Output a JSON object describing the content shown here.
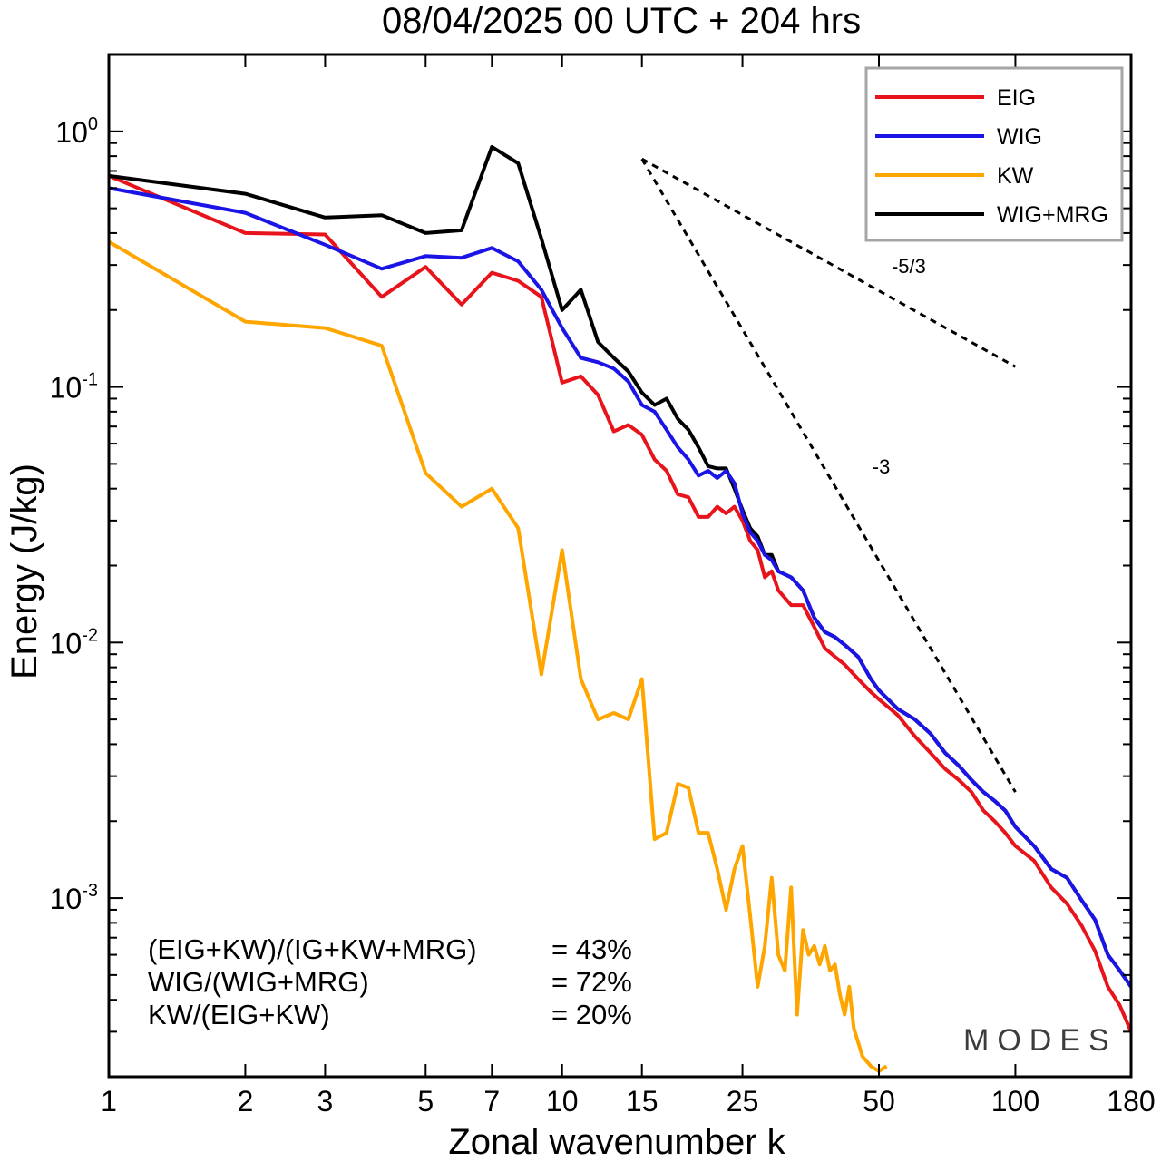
{
  "chart_data": {
    "type": "line",
    "title": "08/04/2025  00 UTC  + 204 hrs",
    "xlabel": "Zonal wavenumber k",
    "ylabel": "Energy (J/kg)",
    "x_scale": "log",
    "y_scale": "log",
    "xlim": [
      1,
      180
    ],
    "ylim": [
      0.0002,
      2.0
    ],
    "x_ticks": [
      1,
      2,
      3,
      5,
      7,
      10,
      15,
      25,
      50,
      100,
      180
    ],
    "x_tick_labels": [
      "1",
      "2",
      "3",
      "5",
      "7",
      "10",
      "15",
      "25",
      "50",
      "100",
      "180"
    ],
    "y_ticks": [
      {
        "base": "10",
        "exp": "-3",
        "value": 0.001
      },
      {
        "base": "10",
        "exp": "-2",
        "value": 0.01
      },
      {
        "base": "10",
        "exp": "-1",
        "value": 0.1
      },
      {
        "base": "10",
        "exp": "0",
        "value": 1
      }
    ],
    "legend_position": "top-right",
    "series": [
      {
        "name": "EIG",
        "color": "#e8141c",
        "x": [
          1,
          2,
          3,
          4,
          5,
          6,
          7,
          8,
          9,
          10,
          11,
          12,
          13,
          14,
          15,
          16,
          17,
          18,
          19,
          20,
          21,
          22,
          23,
          24,
          25,
          26,
          27,
          28,
          29,
          30,
          32,
          34,
          36,
          38,
          40,
          42,
          45,
          48,
          50,
          55,
          60,
          65,
          70,
          75,
          80,
          85,
          90,
          95,
          100,
          110,
          120,
          130,
          140,
          150,
          160,
          170,
          180
        ],
        "y": [
          0.67,
          0.4,
          0.395,
          0.225,
          0.295,
          0.21,
          0.28,
          0.26,
          0.225,
          0.104,
          0.11,
          0.093,
          0.067,
          0.071,
          0.065,
          0.052,
          0.047,
          0.038,
          0.037,
          0.031,
          0.031,
          0.034,
          0.032,
          0.034,
          0.03,
          0.025,
          0.023,
          0.018,
          0.019,
          0.016,
          0.014,
          0.014,
          0.0115,
          0.0095,
          0.0088,
          0.0082,
          0.0072,
          0.0064,
          0.006,
          0.0052,
          0.0043,
          0.0037,
          0.0032,
          0.0029,
          0.0026,
          0.0022,
          0.002,
          0.0018,
          0.0016,
          0.0014,
          0.0011,
          0.00095,
          0.00078,
          0.00062,
          0.00045,
          0.00038,
          0.0003
        ]
      },
      {
        "name": "WIG",
        "color": "#1a14e6",
        "x": [
          1,
          2,
          3,
          4,
          5,
          6,
          7,
          8,
          9,
          10,
          11,
          12,
          13,
          14,
          15,
          16,
          17,
          18,
          19,
          20,
          21,
          22,
          23,
          24,
          25,
          26,
          27,
          28,
          29,
          30,
          32,
          34,
          36,
          38,
          40,
          42,
          45,
          48,
          50,
          55,
          60,
          65,
          70,
          75,
          80,
          85,
          90,
          95,
          100,
          110,
          120,
          130,
          140,
          150,
          160,
          170,
          180
        ],
        "y": [
          0.6,
          0.48,
          0.36,
          0.29,
          0.325,
          0.32,
          0.35,
          0.31,
          0.24,
          0.17,
          0.13,
          0.125,
          0.118,
          0.105,
          0.085,
          0.08,
          0.068,
          0.058,
          0.052,
          0.045,
          0.047,
          0.044,
          0.047,
          0.042,
          0.032,
          0.027,
          0.025,
          0.022,
          0.021,
          0.019,
          0.018,
          0.016,
          0.0125,
          0.011,
          0.0105,
          0.0098,
          0.0088,
          0.0072,
          0.0065,
          0.0055,
          0.005,
          0.0044,
          0.0037,
          0.0033,
          0.0029,
          0.0026,
          0.0024,
          0.0022,
          0.0019,
          0.0016,
          0.0013,
          0.0012,
          0.00098,
          0.00082,
          0.0006,
          0.00052,
          0.00045
        ]
      },
      {
        "name": "KW",
        "color": "#ffa500",
        "x": [
          1,
          2,
          3,
          4,
          5,
          6,
          7,
          8,
          9,
          10,
          11,
          12,
          13,
          14,
          15,
          16,
          17,
          18,
          19,
          20,
          21,
          22,
          23,
          24,
          25,
          26,
          27,
          28,
          29,
          30,
          31,
          32,
          33,
          34,
          35,
          36,
          37,
          38,
          39,
          40,
          41,
          42,
          43,
          44,
          46,
          48,
          50,
          52
        ],
        "y": [
          0.37,
          0.18,
          0.17,
          0.145,
          0.046,
          0.034,
          0.04,
          0.028,
          0.0075,
          0.023,
          0.0072,
          0.005,
          0.0053,
          0.005,
          0.0072,
          0.0017,
          0.0018,
          0.0028,
          0.0027,
          0.0018,
          0.0018,
          0.0013,
          0.0009,
          0.0013,
          0.0016,
          0.00085,
          0.00045,
          0.00065,
          0.0012,
          0.0006,
          0.00052,
          0.0011,
          0.00035,
          0.00075,
          0.0006,
          0.00065,
          0.00055,
          0.00065,
          0.00052,
          0.00055,
          0.00042,
          0.00035,
          0.00045,
          0.00031,
          0.00024,
          0.00022,
          0.00021,
          0.00022
        ]
      },
      {
        "name": "WIG+MRG",
        "color": "#000000",
        "x": [
          1,
          2,
          3,
          4,
          5,
          6,
          7,
          8,
          9,
          10,
          11,
          12,
          13,
          14,
          15,
          16,
          17,
          18,
          19,
          20,
          21,
          22,
          23,
          24,
          25,
          26,
          27,
          28,
          29,
          30,
          32,
          34,
          36,
          38,
          40,
          42,
          45,
          48,
          50,
          55,
          60,
          65,
          70,
          75,
          80,
          85,
          90,
          95,
          100,
          110,
          120,
          130,
          140,
          150,
          160,
          170,
          180
        ],
        "y": [
          0.67,
          0.57,
          0.46,
          0.47,
          0.4,
          0.41,
          0.87,
          0.75,
          0.38,
          0.2,
          0.24,
          0.15,
          0.13,
          0.115,
          0.095,
          0.085,
          0.09,
          0.075,
          0.068,
          0.058,
          0.049,
          0.048,
          0.048,
          0.04,
          0.033,
          0.028,
          0.026,
          0.022,
          0.022,
          0.019,
          0.018,
          0.016,
          0.0125,
          0.011,
          0.0105,
          0.0098,
          0.0088,
          0.0072,
          0.0065,
          0.0055,
          0.005,
          0.0044,
          0.0037,
          0.0033,
          0.0029,
          0.0026,
          0.0024,
          0.0022,
          0.0019,
          0.0016,
          0.0013,
          0.0012,
          0.00098,
          0.00082,
          0.0006,
          0.00052,
          0.00045
        ]
      }
    ],
    "reference_lines": [
      {
        "label": "-5/3",
        "x": [
          15,
          100
        ],
        "y": [
          0.78,
          0.12
        ]
      },
      {
        "label": "-3",
        "x": [
          15,
          100
        ],
        "y": [
          0.78,
          0.0026
        ]
      }
    ],
    "annotations": [
      {
        "text": "(EIG+KW)/(IG+KW+MRG)",
        "value": "= 43%"
      },
      {
        "text": "WIG/(WIG+MRG)",
        "value": "= 72%"
      },
      {
        "text": "KW/(EIG+KW)",
        "value": "= 20%"
      }
    ],
    "watermark": "MODES"
  }
}
